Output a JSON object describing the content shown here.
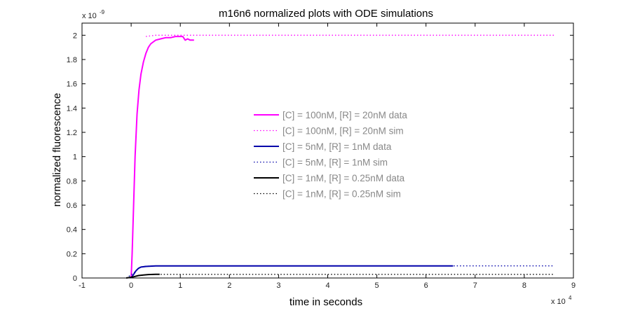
{
  "chart_data": {
    "type": "line",
    "title": "m16n6 normalized plots with ODE simulations",
    "xlabel": "time in seconds",
    "ylabel": "normalized fluorescence",
    "x_exponent_base": "x 10",
    "x_exponent_power": "4",
    "y_exponent_base": "x 10",
    "y_exponent_power": "-9",
    "xlim": [
      -1,
      9
    ],
    "ylim": [
      0,
      2.1
    ],
    "xticks": [
      "-1",
      "0",
      "1",
      "2",
      "3",
      "4",
      "5",
      "6",
      "7",
      "8",
      "9"
    ],
    "yticks": [
      "0",
      "0.2",
      "0.4",
      "0.6",
      "0.8",
      "1",
      "1.2",
      "1.4",
      "1.6",
      "1.8",
      "2"
    ],
    "grid": false,
    "legend_position": "center",
    "colors": {
      "magenta": "#ff00ff",
      "blue": "#0000aa",
      "black": "#000000"
    },
    "series": [
      {
        "name": "[C] = 100nM, [R] = 20nM data",
        "color": "#ff00ff",
        "style": "solid",
        "points": [
          [
            0,
            0
          ],
          [
            0.02,
            0.2
          ],
          [
            0.05,
            0.6
          ],
          [
            0.08,
            1.0
          ],
          [
            0.12,
            1.35
          ],
          [
            0.16,
            1.55
          ],
          [
            0.2,
            1.68
          ],
          [
            0.25,
            1.78
          ],
          [
            0.3,
            1.85
          ],
          [
            0.35,
            1.9
          ],
          [
            0.4,
            1.93
          ],
          [
            0.5,
            1.96
          ],
          [
            0.6,
            1.97
          ],
          [
            0.7,
            1.98
          ],
          [
            0.8,
            1.98
          ],
          [
            0.9,
            1.99
          ],
          [
            1.0,
            1.99
          ],
          [
            1.05,
            1.99
          ],
          [
            1.1,
            1.96
          ],
          [
            1.15,
            1.97
          ],
          [
            1.2,
            1.96
          ],
          [
            1.28,
            1.96
          ]
        ]
      },
      {
        "name": "[C] = 100nM, [R] = 20nM sim",
        "color": "#ff00ff",
        "style": "dotted",
        "points": [
          [
            0.3,
            1.99
          ],
          [
            0.5,
            2.0
          ],
          [
            1,
            2.0
          ],
          [
            2,
            2.0
          ],
          [
            4,
            2.0
          ],
          [
            6,
            2.0
          ],
          [
            8.6,
            2.0
          ]
        ]
      },
      {
        "name": "[C] = 5nM, [R] = 1nM data",
        "color": "#0000aa",
        "style": "solid",
        "points": [
          [
            0,
            0
          ],
          [
            0.05,
            0.03
          ],
          [
            0.1,
            0.06
          ],
          [
            0.15,
            0.08
          ],
          [
            0.2,
            0.09
          ],
          [
            0.3,
            0.095
          ],
          [
            0.5,
            0.1
          ],
          [
            1,
            0.1
          ],
          [
            3,
            0.1
          ],
          [
            5,
            0.1
          ],
          [
            6.55,
            0.1
          ]
        ]
      },
      {
        "name": "[C] = 5nM, [R] = 1nM sim",
        "color": "#0000aa",
        "style": "dotted",
        "points": [
          [
            -0.1,
            0
          ],
          [
            0.05,
            0.04
          ],
          [
            0.12,
            0.07
          ],
          [
            0.2,
            0.09
          ],
          [
            0.3,
            0.097
          ],
          [
            0.5,
            0.1
          ],
          [
            1,
            0.1
          ],
          [
            4,
            0.1
          ],
          [
            6,
            0.1
          ],
          [
            8.6,
            0.1
          ]
        ]
      },
      {
        "name": "[C] = 1nM, [R] = 0.25nM data",
        "color": "#000000",
        "style": "solid",
        "points": [
          [
            -0.1,
            0
          ],
          [
            0.05,
            0.01
          ],
          [
            0.15,
            0.02
          ],
          [
            0.25,
            0.025
          ],
          [
            0.35,
            0.028
          ],
          [
            0.5,
            0.03
          ],
          [
            0.58,
            0.03
          ]
        ]
      },
      {
        "name": "[C] = 1nM, [R] = 0.25nM sim",
        "color": "#000000",
        "style": "dotted",
        "points": [
          [
            -0.1,
            0
          ],
          [
            0.1,
            0.015
          ],
          [
            0.2,
            0.022
          ],
          [
            0.3,
            0.026
          ],
          [
            0.5,
            0.03
          ],
          [
            1,
            0.03
          ],
          [
            4,
            0.03
          ],
          [
            6,
            0.03
          ],
          [
            8.6,
            0.03
          ]
        ]
      }
    ]
  }
}
